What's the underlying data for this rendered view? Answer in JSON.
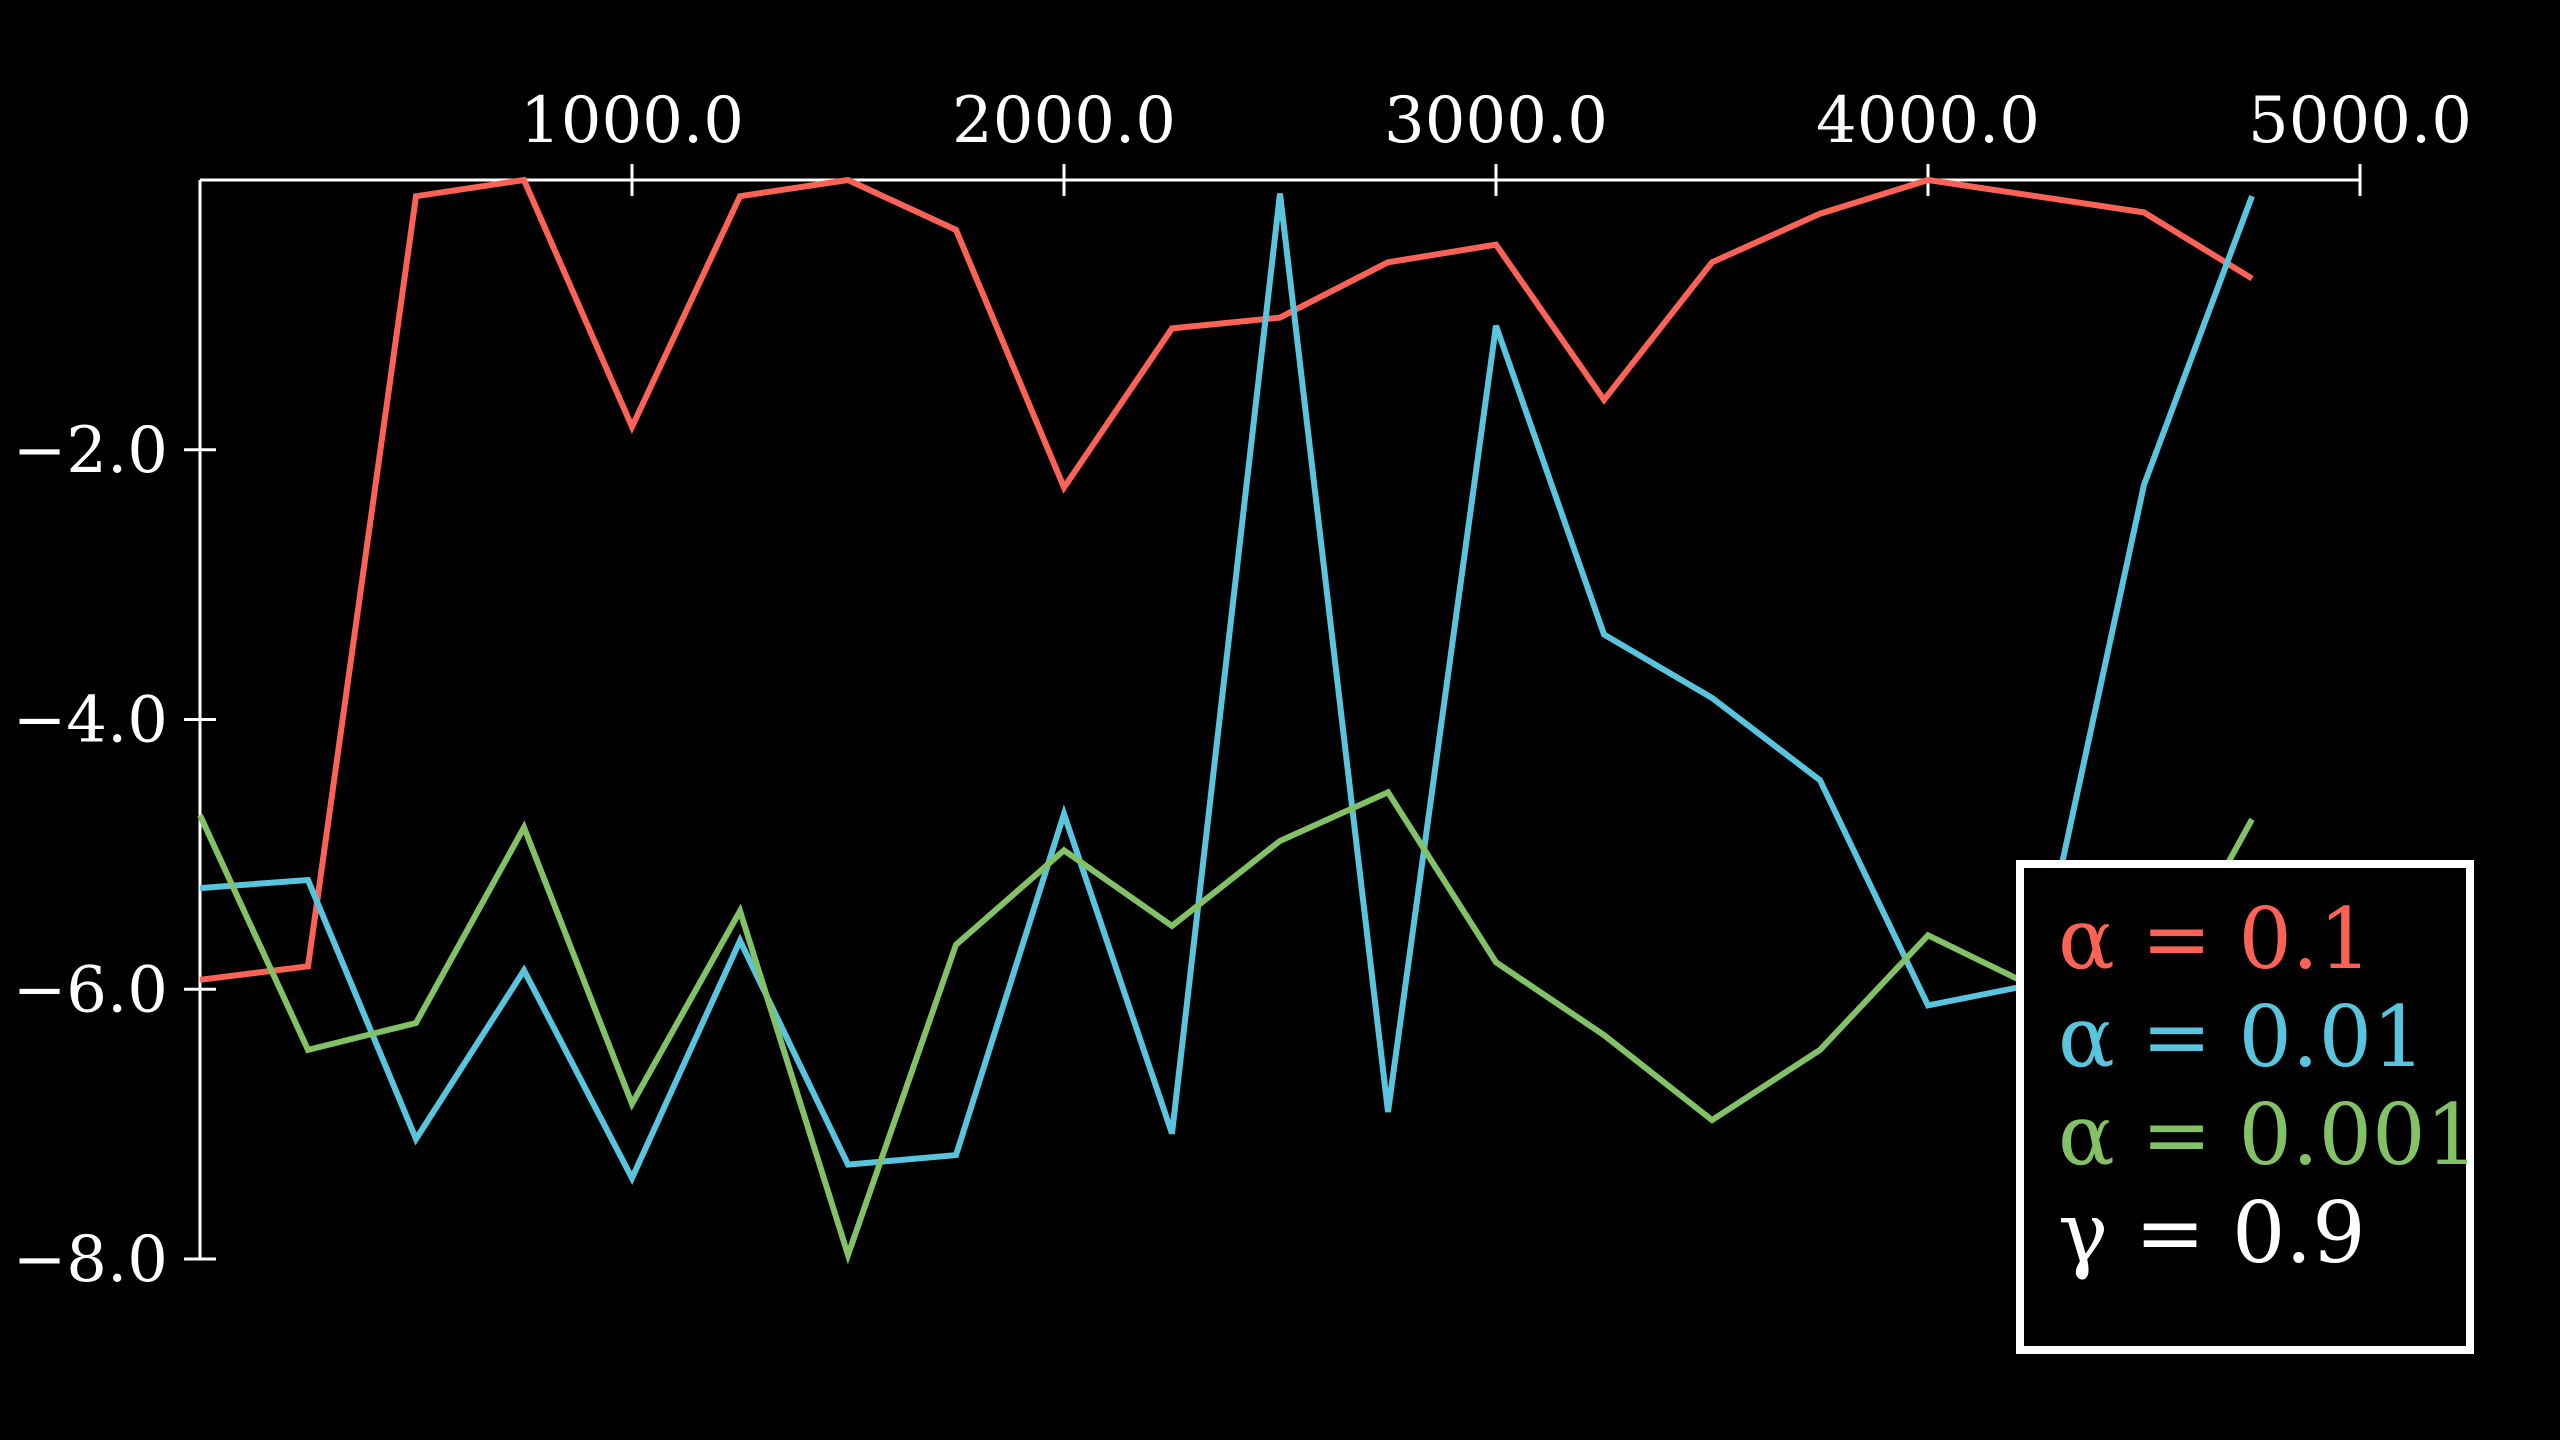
{
  "chart_data": {
    "type": "line",
    "title": "",
    "xlabel": "",
    "ylabel": "",
    "xlim": [
      0,
      5000
    ],
    "ylim": [
      -8,
      0
    ],
    "xticks": [
      1000,
      2000,
      3000,
      4000,
      5000
    ],
    "xtick_labels": [
      "1000.0",
      "2000.0",
      "3000.0",
      "4000.0",
      "5000.0"
    ],
    "yticks": [
      -2,
      -4,
      -6,
      -8
    ],
    "ytick_labels": [
      "−2.0",
      "−4.0",
      "−6.0",
      "−8.0"
    ],
    "x_axis_position": "top",
    "grid": false,
    "legend_position": "bottom-right",
    "x": [
      0,
      250,
      500,
      750,
      1000,
      1250,
      1500,
      1750,
      2000,
      2250,
      2500,
      2750,
      3000,
      3250,
      3500,
      3750,
      4000,
      4250,
      4500,
      4750
    ],
    "series": [
      {
        "name": "α = 0.1",
        "color": "#fc6255",
        "values": [
          -5.93,
          -5.83,
          -0.12,
          0.0,
          -1.83,
          -0.12,
          0.0,
          -0.37,
          -2.28,
          -1.1,
          -1.02,
          -0.61,
          -0.48,
          -1.63,
          -0.61,
          -0.25,
          0.0,
          -0.12,
          -0.24,
          -0.73
        ]
      },
      {
        "name": "α = 0.01",
        "color": "#58c4dd",
        "values": [
          -5.25,
          -5.19,
          -7.11,
          -5.86,
          -7.4,
          -5.64,
          -7.3,
          -7.23,
          -4.7,
          -7.07,
          -0.1,
          -6.91,
          -1.08,
          -3.37,
          -3.84,
          -4.45,
          -6.12,
          -5.96,
          -2.26,
          -0.12
        ]
      },
      {
        "name": "α = 0.001",
        "color": "#83c167",
        "values": [
          -4.71,
          -6.45,
          -6.25,
          -4.8,
          -6.85,
          -5.42,
          -7.97,
          -5.67,
          -4.97,
          -5.53,
          -4.9,
          -4.54,
          -5.8,
          -6.34,
          -6.97,
          -6.45,
          -5.6,
          -5.99,
          -6.2,
          -4.74
        ]
      }
    ],
    "annotations": [
      {
        "text": "γ = 0.9",
        "color": "#ffffff"
      }
    ],
    "colors": {
      "background": "#000000",
      "axes": "#ffffff",
      "legend_border": "#ffffff"
    }
  }
}
